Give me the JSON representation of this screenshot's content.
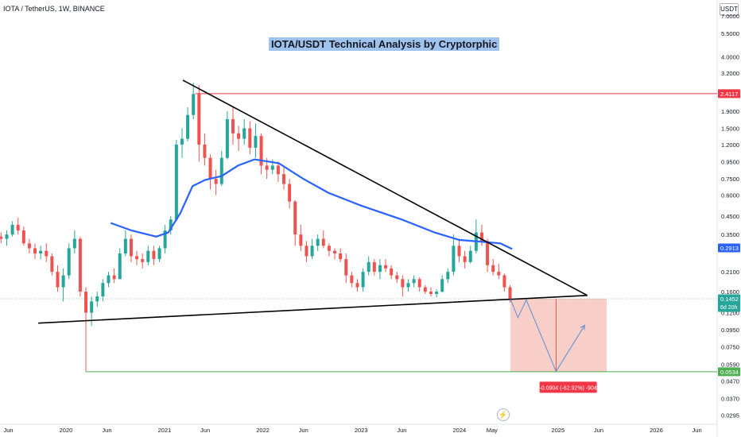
{
  "header": {
    "symbol_line": "IOTA / TetherUS, 1W, BINANCE",
    "title": "IOTA/USDT Technical Analysis by Cryptorphic",
    "currency": "USDT"
  },
  "colors": {
    "up": "#26a69a",
    "down": "#ef5350",
    "ma": "#2962ff",
    "trendline": "#000000",
    "resistance": "#f23645",
    "support": "#4caf50",
    "zone": "#f7c5bf",
    "path": "#5b8fd6",
    "current_price": "#26a69a"
  },
  "chart_data": {
    "type": "candlestick",
    "y_scale": "log",
    "ylim": [
      0.026,
      8.7
    ],
    "xlim": [
      "2019-05-01",
      "2026-08-15"
    ],
    "x_ticks": [
      {
        "date": "2019-06-01",
        "label": "Jun"
      },
      {
        "date": "2020-01-01",
        "label": "2020"
      },
      {
        "date": "2020-06-01",
        "label": "Jun"
      },
      {
        "date": "2021-01-01",
        "label": "2021"
      },
      {
        "date": "2021-06-01",
        "label": "Jun"
      },
      {
        "date": "2022-01-01",
        "label": "2022"
      },
      {
        "date": "2022-06-01",
        "label": "Jun"
      },
      {
        "date": "2023-01-01",
        "label": "2023"
      },
      {
        "date": "2023-06-01",
        "label": "Jun"
      },
      {
        "date": "2024-01-01",
        "label": "2024"
      },
      {
        "date": "2024-05-01",
        "label": "May"
      },
      {
        "date": "2025-01-01",
        "label": "2025"
      },
      {
        "date": "2025-06-01",
        "label": "Jun"
      },
      {
        "date": "2026-01-01",
        "label": "2026"
      },
      {
        "date": "2026-06-01",
        "label": "Jun"
      }
    ],
    "y_ticks": [
      "7.0000",
      "5.5000",
      "4.0000",
      "3.2000",
      "2.4117",
      "1.9000",
      "1.5000",
      "1.2000",
      "0.9500",
      "0.7500",
      "0.6000",
      "0.4500",
      "0.3500",
      "0.2913",
      "0.2100",
      "0.1600",
      "0.1452",
      "0.1200",
      "0.0950",
      "0.0750",
      "0.0590",
      "0.0534",
      "0.0470",
      "0.0370",
      "0.0295"
    ],
    "price_labels": [
      {
        "value": 2.4117,
        "text": "2.4117",
        "color": "#f23645"
      },
      {
        "value": 0.2913,
        "text": "0.2913",
        "color": "#2962ff"
      },
      {
        "value": 0.1452,
        "text": "0.1452",
        "sub": "6d 20h",
        "color": "#26a69a"
      },
      {
        "value": 0.0534,
        "text": "0.0534",
        "color": "#4caf50"
      }
    ],
    "levels": {
      "resistance": 2.4117,
      "support": 0.0534,
      "current": 0.1452
    },
    "trendlines": [
      {
        "name": "descending",
        "from": {
          "date": "2021-03-10",
          "price": 2.9
        },
        "to": {
          "date": "2025-04-20",
          "price": 0.152
        }
      },
      {
        "name": "ascending",
        "from": {
          "date": "2019-09-20",
          "price": 0.104
        },
        "to": {
          "date": "2025-04-20",
          "price": 0.152
        }
      }
    ],
    "target_zone": {
      "start": "2024-07-08",
      "end": "2025-07-01",
      "top": 0.1452,
      "bottom": 0.0534
    },
    "measurement": {
      "text": "-0.0904 (-62.92%) -904",
      "at_date": "2024-10-01",
      "price": 0.0432
    },
    "projection_path": [
      {
        "date": "2024-07-08",
        "price": 0.145
      },
      {
        "date": "2024-08-05",
        "price": 0.112
      },
      {
        "date": "2024-09-05",
        "price": 0.143
      },
      {
        "date": "2024-12-25",
        "price": 0.0537
      },
      {
        "date": "2025-04-10",
        "price": 0.101
      }
    ],
    "ma": [
      {
        "date": "2020-06-15",
        "price": 0.41
      },
      {
        "date": "2020-09-01",
        "price": 0.37
      },
      {
        "date": "2020-12-01",
        "price": 0.34
      },
      {
        "date": "2021-01-15",
        "price": 0.36
      },
      {
        "date": "2021-03-01",
        "price": 0.47
      },
      {
        "date": "2021-04-15",
        "price": 0.68
      },
      {
        "date": "2021-06-01",
        "price": 0.74
      },
      {
        "date": "2021-08-01",
        "price": 0.78
      },
      {
        "date": "2021-10-01",
        "price": 0.9
      },
      {
        "date": "2021-12-01",
        "price": 0.98
      },
      {
        "date": "2022-03-01",
        "price": 0.93
      },
      {
        "date": "2022-06-01",
        "price": 0.75
      },
      {
        "date": "2022-09-01",
        "price": 0.62
      },
      {
        "date": "2023-01-01",
        "price": 0.52
      },
      {
        "date": "2023-06-01",
        "price": 0.43
      },
      {
        "date": "2023-10-01",
        "price": 0.36
      },
      {
        "date": "2024-01-01",
        "price": 0.325
      },
      {
        "date": "2024-03-15",
        "price": 0.318
      },
      {
        "date": "2024-06-01",
        "price": 0.31
      },
      {
        "date": "2024-07-15",
        "price": 0.287
      }
    ],
    "candles": [
      {
        "date": "2019-05-05",
        "o": 0.34,
        "h": 0.36,
        "l": 0.31,
        "c": 0.33
      },
      {
        "date": "2019-05-26",
        "o": 0.33,
        "h": 0.37,
        "l": 0.3,
        "c": 0.35
      },
      {
        "date": "2019-06-16",
        "o": 0.35,
        "h": 0.42,
        "l": 0.34,
        "c": 0.4
      },
      {
        "date": "2019-07-07",
        "o": 0.4,
        "h": 0.44,
        "l": 0.35,
        "c": 0.37
      },
      {
        "date": "2019-07-28",
        "o": 0.37,
        "h": 0.39,
        "l": 0.3,
        "c": 0.31
      },
      {
        "date": "2019-08-18",
        "o": 0.31,
        "h": 0.33,
        "l": 0.27,
        "c": 0.29
      },
      {
        "date": "2019-09-08",
        "o": 0.29,
        "h": 0.31,
        "l": 0.25,
        "c": 0.27
      },
      {
        "date": "2019-09-29",
        "o": 0.27,
        "h": 0.3,
        "l": 0.25,
        "c": 0.28
      },
      {
        "date": "2019-10-20",
        "o": 0.28,
        "h": 0.31,
        "l": 0.24,
        "c": 0.26
      },
      {
        "date": "2019-11-10",
        "o": 0.26,
        "h": 0.27,
        "l": 0.2,
        "c": 0.21
      },
      {
        "date": "2019-12-01",
        "o": 0.21,
        "h": 0.23,
        "l": 0.16,
        "c": 0.17
      },
      {
        "date": "2019-12-22",
        "o": 0.17,
        "h": 0.22,
        "l": 0.14,
        "c": 0.2
      },
      {
        "date": "2020-01-12",
        "o": 0.2,
        "h": 0.31,
        "l": 0.19,
        "c": 0.29
      },
      {
        "date": "2020-02-02",
        "o": 0.29,
        "h": 0.37,
        "l": 0.27,
        "c": 0.33
      },
      {
        "date": "2020-02-23",
        "o": 0.33,
        "h": 0.34,
        "l": 0.15,
        "c": 0.16
      },
      {
        "date": "2020-03-15",
        "o": 0.16,
        "h": 0.17,
        "l": 0.0534,
        "c": 0.12
      },
      {
        "date": "2020-04-05",
        "o": 0.12,
        "h": 0.15,
        "l": 0.1,
        "c": 0.14
      },
      {
        "date": "2020-04-26",
        "o": 0.14,
        "h": 0.16,
        "l": 0.13,
        "c": 0.15
      },
      {
        "date": "2020-05-17",
        "o": 0.15,
        "h": 0.19,
        "l": 0.14,
        "c": 0.18
      },
      {
        "date": "2020-06-07",
        "o": 0.18,
        "h": 0.21,
        "l": 0.17,
        "c": 0.2
      },
      {
        "date": "2020-06-28",
        "o": 0.2,
        "h": 0.22,
        "l": 0.18,
        "c": 0.19
      },
      {
        "date": "2020-07-19",
        "o": 0.19,
        "h": 0.29,
        "l": 0.19,
        "c": 0.27
      },
      {
        "date": "2020-08-09",
        "o": 0.27,
        "h": 0.37,
        "l": 0.26,
        "c": 0.33
      },
      {
        "date": "2020-08-30",
        "o": 0.33,
        "h": 0.35,
        "l": 0.24,
        "c": 0.26
      },
      {
        "date": "2020-09-20",
        "o": 0.26,
        "h": 0.28,
        "l": 0.23,
        "c": 0.25
      },
      {
        "date": "2020-10-11",
        "o": 0.25,
        "h": 0.27,
        "l": 0.22,
        "c": 0.24
      },
      {
        "date": "2020-11-01",
        "o": 0.24,
        "h": 0.3,
        "l": 0.23,
        "c": 0.28
      },
      {
        "date": "2020-11-22",
        "o": 0.28,
        "h": 0.3,
        "l": 0.23,
        "c": 0.25
      },
      {
        "date": "2020-12-13",
        "o": 0.25,
        "h": 0.3,
        "l": 0.24,
        "c": 0.29
      },
      {
        "date": "2021-01-03",
        "o": 0.29,
        "h": 0.4,
        "l": 0.27,
        "c": 0.37
      },
      {
        "date": "2021-01-24",
        "o": 0.37,
        "h": 0.45,
        "l": 0.35,
        "c": 0.43
      },
      {
        "date": "2021-02-14",
        "o": 0.43,
        "h": 1.28,
        "l": 0.42,
        "c": 1.2
      },
      {
        "date": "2021-03-07",
        "o": 1.2,
        "h": 1.5,
        "l": 1.0,
        "c": 1.3
      },
      {
        "date": "2021-03-28",
        "o": 1.3,
        "h": 2.0,
        "l": 1.25,
        "c": 1.8
      },
      {
        "date": "2021-04-18",
        "o": 1.8,
        "h": 2.8,
        "l": 1.7,
        "c": 2.4
      },
      {
        "date": "2021-05-09",
        "o": 2.4,
        "h": 2.7,
        "l": 0.95,
        "c": 1.2
      },
      {
        "date": "2021-05-30",
        "o": 1.2,
        "h": 1.4,
        "l": 0.9,
        "c": 1.0
      },
      {
        "date": "2021-06-20",
        "o": 1.0,
        "h": 1.05,
        "l": 0.65,
        "c": 0.75
      },
      {
        "date": "2021-07-11",
        "o": 0.75,
        "h": 0.85,
        "l": 0.6,
        "c": 0.7
      },
      {
        "date": "2021-08-01",
        "o": 0.7,
        "h": 1.1,
        "l": 0.68,
        "c": 1.0
      },
      {
        "date": "2021-08-22",
        "o": 1.0,
        "h": 1.9,
        "l": 0.98,
        "c": 1.7
      },
      {
        "date": "2021-09-12",
        "o": 1.7,
        "h": 2.0,
        "l": 1.2,
        "c": 1.4
      },
      {
        "date": "2021-10-03",
        "o": 1.4,
        "h": 1.55,
        "l": 1.1,
        "c": 1.3
      },
      {
        "date": "2021-10-24",
        "o": 1.3,
        "h": 1.7,
        "l": 1.2,
        "c": 1.5
      },
      {
        "date": "2021-11-14",
        "o": 1.5,
        "h": 1.65,
        "l": 1.05,
        "c": 1.15
      },
      {
        "date": "2021-12-05",
        "o": 1.15,
        "h": 1.6,
        "l": 1.0,
        "c": 1.35
      },
      {
        "date": "2021-12-26",
        "o": 1.35,
        "h": 1.4,
        "l": 0.8,
        "c": 0.9
      },
      {
        "date": "2022-01-16",
        "o": 0.9,
        "h": 1.0,
        "l": 0.75,
        "c": 0.85
      },
      {
        "date": "2022-02-06",
        "o": 0.85,
        "h": 0.98,
        "l": 0.8,
        "c": 0.9
      },
      {
        "date": "2022-02-27",
        "o": 0.9,
        "h": 0.95,
        "l": 0.72,
        "c": 0.8
      },
      {
        "date": "2022-03-20",
        "o": 0.8,
        "h": 0.9,
        "l": 0.65,
        "c": 0.7
      },
      {
        "date": "2022-04-10",
        "o": 0.7,
        "h": 0.75,
        "l": 0.5,
        "c": 0.55
      },
      {
        "date": "2022-05-01",
        "o": 0.55,
        "h": 0.56,
        "l": 0.3,
        "c": 0.35
      },
      {
        "date": "2022-05-22",
        "o": 0.35,
        "h": 0.4,
        "l": 0.28,
        "c": 0.3
      },
      {
        "date": "2022-06-12",
        "o": 0.3,
        "h": 0.32,
        "l": 0.24,
        "c": 0.26
      },
      {
        "date": "2022-07-03",
        "o": 0.26,
        "h": 0.33,
        "l": 0.25,
        "c": 0.3
      },
      {
        "date": "2022-07-24",
        "o": 0.3,
        "h": 0.35,
        "l": 0.28,
        "c": 0.33
      },
      {
        "date": "2022-08-14",
        "o": 0.33,
        "h": 0.37,
        "l": 0.29,
        "c": 0.3
      },
      {
        "date": "2022-09-04",
        "o": 0.3,
        "h": 0.31,
        "l": 0.26,
        "c": 0.28
      },
      {
        "date": "2022-09-25",
        "o": 0.28,
        "h": 0.29,
        "l": 0.25,
        "c": 0.27
      },
      {
        "date": "2022-10-16",
        "o": 0.27,
        "h": 0.29,
        "l": 0.24,
        "c": 0.25
      },
      {
        "date": "2022-11-06",
        "o": 0.25,
        "h": 0.27,
        "l": 0.18,
        "c": 0.2
      },
      {
        "date": "2022-11-27",
        "o": 0.2,
        "h": 0.21,
        "l": 0.17,
        "c": 0.18
      },
      {
        "date": "2022-12-18",
        "o": 0.18,
        "h": 0.19,
        "l": 0.16,
        "c": 0.17
      },
      {
        "date": "2023-01-08",
        "o": 0.17,
        "h": 0.22,
        "l": 0.16,
        "c": 0.21
      },
      {
        "date": "2023-01-29",
        "o": 0.21,
        "h": 0.26,
        "l": 0.2,
        "c": 0.24
      },
      {
        "date": "2023-02-19",
        "o": 0.24,
        "h": 0.25,
        "l": 0.2,
        "c": 0.21
      },
      {
        "date": "2023-03-12",
        "o": 0.21,
        "h": 0.25,
        "l": 0.19,
        "c": 0.23
      },
      {
        "date": "2023-04-02",
        "o": 0.23,
        "h": 0.25,
        "l": 0.21,
        "c": 0.22
      },
      {
        "date": "2023-04-23",
        "o": 0.22,
        "h": 0.23,
        "l": 0.19,
        "c": 0.2
      },
      {
        "date": "2023-05-14",
        "o": 0.2,
        "h": 0.21,
        "l": 0.18,
        "c": 0.19
      },
      {
        "date": "2023-06-04",
        "o": 0.19,
        "h": 0.2,
        "l": 0.15,
        "c": 0.17
      },
      {
        "date": "2023-06-25",
        "o": 0.17,
        "h": 0.19,
        "l": 0.16,
        "c": 0.18
      },
      {
        "date": "2023-07-16",
        "o": 0.18,
        "h": 0.2,
        "l": 0.17,
        "c": 0.19
      },
      {
        "date": "2023-08-06",
        "o": 0.19,
        "h": 0.195,
        "l": 0.16,
        "c": 0.17
      },
      {
        "date": "2023-08-27",
        "o": 0.17,
        "h": 0.175,
        "l": 0.155,
        "c": 0.16
      },
      {
        "date": "2023-09-17",
        "o": 0.16,
        "h": 0.17,
        "l": 0.15,
        "c": 0.155
      },
      {
        "date": "2023-10-08",
        "o": 0.155,
        "h": 0.165,
        "l": 0.148,
        "c": 0.16
      },
      {
        "date": "2023-10-29",
        "o": 0.16,
        "h": 0.2,
        "l": 0.158,
        "c": 0.19
      },
      {
        "date": "2023-11-19",
        "o": 0.19,
        "h": 0.22,
        "l": 0.18,
        "c": 0.21
      },
      {
        "date": "2023-12-10",
        "o": 0.21,
        "h": 0.35,
        "l": 0.2,
        "c": 0.3
      },
      {
        "date": "2023-12-31",
        "o": 0.3,
        "h": 0.33,
        "l": 0.24,
        "c": 0.26
      },
      {
        "date": "2024-01-21",
        "o": 0.26,
        "h": 0.28,
        "l": 0.22,
        "c": 0.24
      },
      {
        "date": "2024-02-11",
        "o": 0.24,
        "h": 0.3,
        "l": 0.235,
        "c": 0.28
      },
      {
        "date": "2024-03-03",
        "o": 0.28,
        "h": 0.43,
        "l": 0.27,
        "c": 0.36
      },
      {
        "date": "2024-03-24",
        "o": 0.36,
        "h": 0.4,
        "l": 0.3,
        "c": 0.32
      },
      {
        "date": "2024-04-14",
        "o": 0.32,
        "h": 0.33,
        "l": 0.21,
        "c": 0.23
      },
      {
        "date": "2024-05-05",
        "o": 0.23,
        "h": 0.25,
        "l": 0.2,
        "c": 0.21
      },
      {
        "date": "2024-05-26",
        "o": 0.21,
        "h": 0.235,
        "l": 0.19,
        "c": 0.2
      },
      {
        "date": "2024-06-16",
        "o": 0.2,
        "h": 0.205,
        "l": 0.16,
        "c": 0.17
      },
      {
        "date": "2024-07-07",
        "o": 0.17,
        "h": 0.175,
        "l": 0.138,
        "c": 0.1452
      }
    ]
  }
}
